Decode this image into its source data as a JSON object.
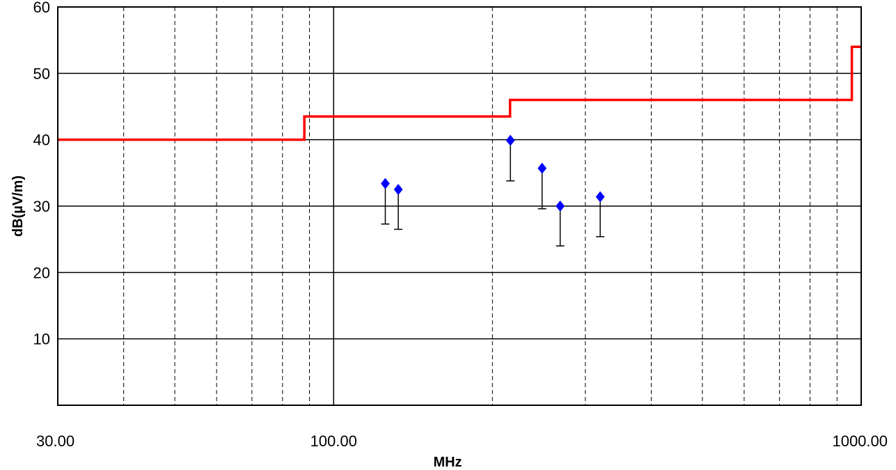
{
  "chart_data": {
    "type": "scatter",
    "title": "",
    "xlabel": "MHz",
    "ylabel": "dB(µV/m)",
    "xscale": "log",
    "xlim": [
      30,
      1000
    ],
    "ylim": [
      0,
      60
    ],
    "x_tick_labels": [
      {
        "value": 30,
        "label": "30.00"
      },
      {
        "value": 100,
        "label": "100.00"
      },
      {
        "value": 1000,
        "label": "1000.00"
      }
    ],
    "y_tick_labels": [
      {
        "value": 10,
        "label": "10"
      },
      {
        "value": 20,
        "label": "20"
      },
      {
        "value": 30,
        "label": "30"
      },
      {
        "value": 40,
        "label": "40"
      },
      {
        "value": 50,
        "label": "50"
      },
      {
        "value": 60,
        "label": "60"
      }
    ],
    "grid": {
      "x_minor_dashed": [
        40,
        50,
        60,
        70,
        80,
        90,
        200,
        300,
        400,
        500,
        600,
        700,
        800,
        900
      ],
      "x_major_solid": [
        100
      ],
      "y_major_solid": [
        10,
        20,
        30,
        40,
        50,
        60
      ]
    },
    "limit_line": {
      "color": "#ff0000",
      "steps": [
        {
          "x_start": 30,
          "x_end": 88,
          "y": 40
        },
        {
          "x_start": 88,
          "x_end": 216,
          "y": 43.5
        },
        {
          "x_start": 216,
          "x_end": 960,
          "y": 46
        },
        {
          "x_start": 960,
          "x_end": 1000,
          "y": 54
        }
      ]
    },
    "points": [
      {
        "x": 125.3,
        "y": 33.4,
        "y_low": 27.3
      },
      {
        "x": 132.6,
        "y": 32.5,
        "y_low": 26.5
      },
      {
        "x": 216.3,
        "y": 39.9,
        "y_low": 33.8
      },
      {
        "x": 248.4,
        "y": 35.7,
        "y_low": 29.6
      },
      {
        "x": 268.8,
        "y": 30.0,
        "y_low": 24.0
      },
      {
        "x": 320.1,
        "y": 31.4,
        "y_low": 25.4
      }
    ],
    "marker_color": "#0000ff",
    "errorbar_color": "#000000",
    "legend": "none"
  }
}
